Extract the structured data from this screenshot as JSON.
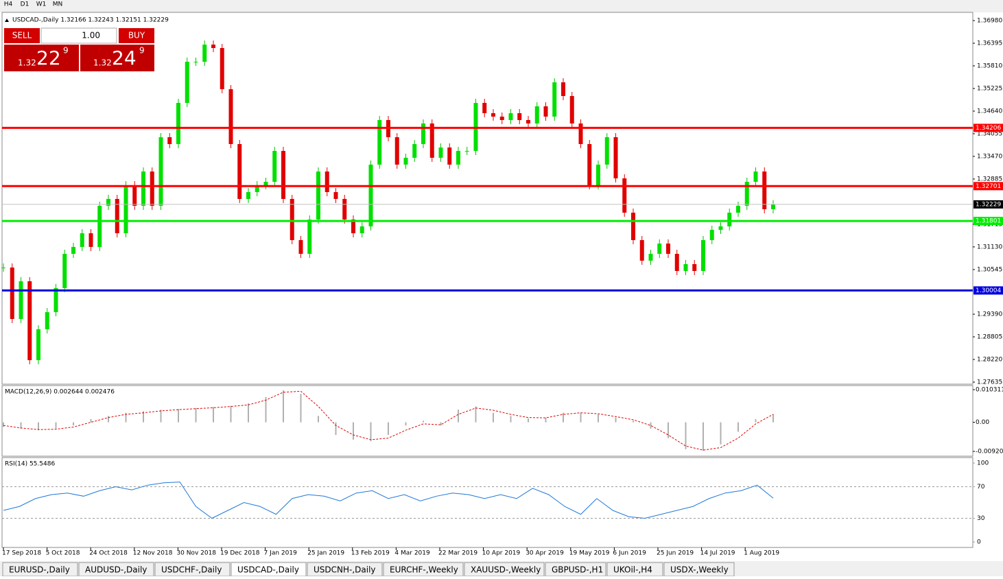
{
  "timeframes": [
    "H4",
    "D1",
    "W1",
    "MN"
  ],
  "symbol_header": "USDCAD-,Daily  1.32166 1.32243 1.32151 1.32229",
  "trade_panel": {
    "sell": "SELL",
    "buy": "BUY",
    "lot": "1.00",
    "sell_price": {
      "big": "1.32",
      "pips": "22",
      "point": "9"
    },
    "buy_price": {
      "big": "1.32",
      "pips": "24",
      "point": "9"
    }
  },
  "price_panel": {
    "ylim": [
      1.27635,
      1.3698
    ],
    "yticks": [
      {
        "value": 1.3698,
        "label": "1.36980"
      },
      1.36395,
      {
        "value": 1.3581,
        "label": "1.35810"
      },
      1.35225,
      {
        "value": 1.3464,
        "label": "1.34640"
      },
      1.34055,
      {
        "value": 1.3347,
        "label": "1.33470"
      },
      1.32885,
      1.31715,
      {
        "value": 1.3113,
        "label": "1.31130"
      },
      1.30545,
      {
        "value": 1.2939,
        "label": "1.29390"
      },
      1.28805,
      {
        "value": 1.2822,
        "label": "1.28220"
      },
      1.27635
    ],
    "levels": [
      {
        "value": 1.34206,
        "color": "#ff0000"
      },
      {
        "value": 1.32701,
        "color": "#ff0000"
      },
      {
        "value": 1.31801,
        "color": "#00ee00"
      },
      {
        "value": 1.30004,
        "color": "#0000dd"
      }
    ],
    "current": 1.32229,
    "closes": [
      1.30597,
      1.29267,
      1.30242,
      1.28203,
      1.29001,
      1.29444,
      1.30065,
      1.30951,
      1.31129,
      1.31483,
      1.31129,
      1.32193,
      1.3237,
      1.31483,
      1.32725,
      1.32193,
      1.33079,
      1.32193,
      1.33966,
      1.33788,
      1.34852,
      1.35916,
      1.35916,
      1.36359,
      1.36271,
      1.35207,
      1.33788,
      1.3237,
      1.32547,
      1.32725,
      1.32813,
      1.33611,
      1.3237,
      1.31306,
      1.30951,
      1.31838,
      1.33079,
      1.32547,
      1.3237,
      1.31838,
      1.31483,
      1.31661,
      1.33257,
      1.34409,
      1.33966,
      1.33257,
      1.33434,
      1.33788,
      1.3432,
      1.33434,
      1.337,
      1.33257,
      1.33611,
      1.33611,
      1.34852,
      1.34586,
      1.34498,
      1.34409,
      1.34586,
      1.34409,
      1.3432,
      1.34764,
      1.34498,
      1.35384,
      1.3503,
      1.3432,
      1.33788,
      1.32725,
      1.33257,
      1.33966,
      1.32902,
      1.32015,
      1.31306,
      1.30774,
      1.30951,
      1.31217,
      1.30951,
      1.30508,
      1.30685,
      1.30508,
      1.31306,
      1.31572,
      1.31661,
      1.32015,
      1.32193,
      1.32813,
      1.33079,
      1.32104,
      1.32229
    ]
  },
  "macd_panel": {
    "label": "MACD(12,26,9) 0.002644 0.002476",
    "ylim": [
      -0.009203,
      0.010311
    ],
    "yticks": [
      0.010311,
      {
        "value": 0,
        "label": "0.00"
      },
      -0.009203
    ],
    "histogram": [
      -0.0015,
      -0.002,
      -0.0025,
      -0.002,
      -0.001,
      0.001,
      0.002,
      0.003,
      0.0035,
      0.004,
      0.0042,
      0.0045,
      0.0048,
      0.0052,
      0.006,
      0.008,
      0.0101,
      0.009,
      0.002,
      -0.004,
      -0.0055,
      -0.006,
      -0.004,
      -0.001,
      0.0005,
      -0.001,
      0.004,
      0.005,
      0.003,
      0.002,
      0.0012,
      0.0015,
      0.003,
      0.003,
      0.0025,
      0.0015,
      0.0005,
      -0.002,
      -0.005,
      -0.0085,
      -0.009,
      -0.007,
      -0.003,
      0.001,
      0.0026
    ],
    "signal": [
      -0.001,
      -0.0018,
      -0.0023,
      -0.0022,
      -0.0015,
      0,
      0.0015,
      0.0025,
      0.003,
      0.0036,
      0.004,
      0.0043,
      0.0046,
      0.005,
      0.0055,
      0.007,
      0.0095,
      0.0098,
      0.005,
      -0.001,
      -0.004,
      -0.0055,
      -0.005,
      -0.0025,
      -0.0005,
      -0.0008,
      0.0025,
      0.0045,
      0.0038,
      0.0025,
      0.0015,
      0.0014,
      0.0025,
      0.003,
      0.0027,
      0.0018,
      0.0008,
      -0.001,
      -0.004,
      -0.0075,
      -0.0088,
      -0.008,
      -0.005,
      -0.0005,
      0.0025
    ]
  },
  "rsi_panel": {
    "label": "RSI(14) 55.5486",
    "ylim": [
      0,
      100
    ],
    "yticks": [
      100,
      70,
      30,
      0
    ],
    "values": [
      40,
      45,
      55,
      60,
      62,
      58,
      65,
      70,
      66,
      72,
      75,
      76,
      45,
      30,
      40,
      50,
      45,
      35,
      55,
      60,
      58,
      52,
      62,
      65,
      55,
      60,
      52,
      58,
      62,
      60,
      55,
      60,
      55,
      68,
      60,
      45,
      35,
      55,
      40,
      32,
      30,
      35,
      40,
      45,
      55,
      62,
      65,
      72,
      55.5486
    ]
  },
  "dates": [
    "17 Sep 2018",
    "5 Oct 2018",
    "24 Oct 2018",
    "12 Nov 2018",
    "30 Nov 2018",
    "19 Dec 2018",
    "7 Jan 2019",
    "25 Jan 2019",
    "13 Feb 2019",
    "4 Mar 2019",
    "22 Mar 2019",
    "10 Apr 2019",
    "30 Apr 2019",
    "19 May 2019",
    "6 Jun 2019",
    "25 Jun 2019",
    "14 Jul 2019",
    "1 Aug 2019"
  ],
  "tabs": [
    "EURUSD-,Daily",
    "AUDUSD-,Daily",
    "USDCHF-,Daily",
    "USDCAD-,Daily",
    "USDCNH-,Daily",
    "EURCHF-,Weekly",
    "XAUUSD-,Weekly",
    "GBPUSD-,H1",
    "UKOil-,H4",
    "USDX-,Weekly"
  ],
  "active_tab": "USDCAD-,Daily"
}
